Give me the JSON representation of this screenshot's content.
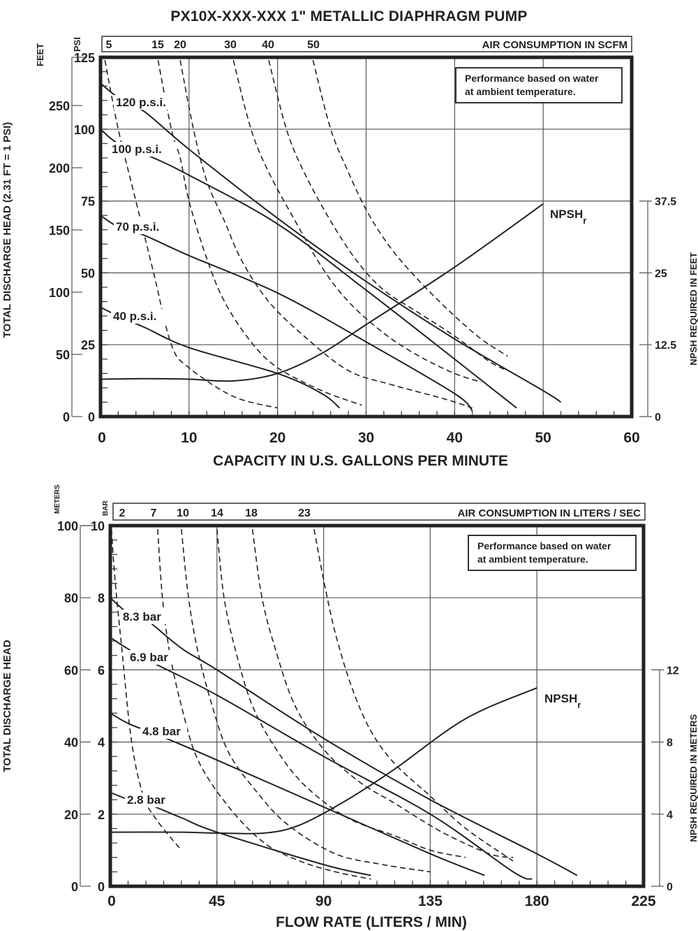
{
  "title": "PX10X-XXX-XXX 1\" METALLIC DIAPHRAGM PUMP",
  "chart_data": [
    {
      "type": "line",
      "title": "PX10X-XXX-XXX 1\" METALLIC DIAPHRAGM PUMP (US units)",
      "xlabel": "CAPACITY IN U.S. GALLONS PER MINUTE",
      "ylabel": "TOTAL DISCHARGE HEAD (2.31 FT = 1 PSI)",
      "ylabel_left_inner": "PSI",
      "ylabel_left_outer": "FEET",
      "ylabel_right": "NPSH REQUIRED IN FEET",
      "top_axis_label": "AIR CONSUMPTION IN SCFM",
      "xlim": [
        0,
        60
      ],
      "ylim": [
        0,
        125
      ],
      "x_ticks": [
        0,
        10,
        20,
        30,
        40,
        50,
        60
      ],
      "y_ticks_psi": [
        0,
        25,
        50,
        75,
        100,
        125
      ],
      "y_ticks_feet": [
        0,
        50,
        100,
        150,
        200,
        250
      ],
      "y_ticks_npsh_feet": [
        0,
        12.5,
        25,
        37.5
      ],
      "air_consumption_ticks": [
        "5",
        "15",
        "20",
        "30",
        "40",
        "50"
      ],
      "note": [
        "Performance based on water",
        "at ambient temperature."
      ],
      "grid": true,
      "series": [
        {
          "name": "120 p.s.i.",
          "style": "solid",
          "points": [
            [
              0,
              116
            ],
            [
              2,
              111
            ],
            [
              5,
              106
            ],
            [
              10,
              93
            ],
            [
              20,
              69
            ],
            [
              30,
              47
            ],
            [
              40,
              27
            ],
            [
              50,
              9
            ],
            [
              52,
              5
            ]
          ]
        },
        {
          "name": "100 p.s.i.",
          "style": "solid",
          "points": [
            [
              0,
              100
            ],
            [
              2,
              95
            ],
            [
              6,
              90
            ],
            [
              10,
              84
            ],
            [
              20,
              67
            ],
            [
              30,
              44
            ],
            [
              40,
              20
            ],
            [
              47,
              3
            ]
          ]
        },
        {
          "name": "70 p.s.i.",
          "style": "solid",
          "points": [
            [
              0,
              70
            ],
            [
              2,
              66
            ],
            [
              5,
              63
            ],
            [
              10,
              56
            ],
            [
              20,
              43
            ],
            [
              30,
              26
            ],
            [
              40,
              8
            ],
            [
              42,
              2
            ]
          ]
        },
        {
          "name": "40 p.s.i.",
          "style": "solid",
          "points": [
            [
              0,
              38
            ],
            [
              2,
              35
            ],
            [
              5,
              31
            ],
            [
              10,
              24
            ],
            [
              20,
              15
            ],
            [
              25,
              8
            ],
            [
              27,
              3
            ]
          ]
        },
        {
          "name": "NPSHr",
          "style": "solid",
          "axis": "npsh_feet",
          "points": [
            [
              0,
              6.5
            ],
            [
              5,
              6.6
            ],
            [
              10,
              6.5
            ],
            [
              15,
              6.2
            ],
            [
              20,
              7.5
            ],
            [
              25,
              11
            ],
            [
              30,
              16
            ],
            [
              40,
              26
            ],
            [
              50,
              37
            ]
          ]
        },
        {
          "name": "air 5 SCFM",
          "style": "dashed",
          "points": [
            [
              0.5,
              124
            ],
            [
              2,
              100
            ],
            [
              4,
              75
            ],
            [
              6,
              50
            ],
            [
              8,
              25
            ],
            [
              10,
              17
            ],
            [
              15,
              7
            ],
            [
              20,
              3
            ]
          ]
        },
        {
          "name": "air 15 SCFM",
          "style": "dashed",
          "points": [
            [
              6.5,
              124
            ],
            [
              8,
              100
            ],
            [
              9,
              90
            ],
            [
              10,
              75
            ],
            [
              12,
              55
            ],
            [
              14,
              40
            ],
            [
              17,
              26
            ],
            [
              20,
              17
            ],
            [
              25,
              9
            ],
            [
              29.5,
              4
            ]
          ]
        },
        {
          "name": "air 20 SCFM",
          "style": "dashed",
          "points": [
            [
              9,
              124
            ],
            [
              10.5,
              100
            ],
            [
              12,
              82
            ],
            [
              14,
              68
            ],
            [
              16,
              54
            ],
            [
              19,
              40
            ],
            [
              23,
              28
            ],
            [
              28,
              16
            ],
            [
              33,
              11
            ],
            [
              39,
              6
            ],
            [
              42,
              3
            ]
          ]
        },
        {
          "name": "air 30 SCFM",
          "style": "dashed",
          "points": [
            [
              15,
              124
            ],
            [
              17,
              100
            ],
            [
              19,
              85
            ],
            [
              22,
              68
            ],
            [
              25,
              52
            ],
            [
              28,
              40
            ],
            [
              32,
              29
            ],
            [
              36,
              21
            ],
            [
              40,
              15
            ],
            [
              43,
              12
            ]
          ]
        },
        {
          "name": "air 40 SCFM",
          "style": "dashed",
          "points": [
            [
              19,
              124
            ],
            [
              21,
              100
            ],
            [
              23,
              85
            ],
            [
              26,
              68
            ],
            [
              29,
              54
            ],
            [
              32,
              44
            ],
            [
              36,
              36
            ],
            [
              40,
              28
            ],
            [
              44,
              19
            ],
            [
              46,
              16
            ]
          ]
        },
        {
          "name": "air 50 SCFM",
          "style": "dashed",
          "points": [
            [
              24,
              124
            ],
            [
              26,
              100
            ],
            [
              28,
              85
            ],
            [
              30,
              72
            ],
            [
              32,
              62
            ],
            [
              34,
              54
            ],
            [
              37,
              44
            ],
            [
              40,
              35
            ],
            [
              43,
              27
            ],
            [
              46,
              21
            ]
          ]
        }
      ]
    },
    {
      "type": "line",
      "title": "PX10X-XXX-XXX 1\" METALLIC DIAPHRAGM PUMP (metric units)",
      "xlabel": "FLOW RATE (LITERS / MIN)",
      "ylabel": "TOTAL DISCHARGE HEAD",
      "ylabel_left_inner": "BAR",
      "ylabel_left_outer": "METERS",
      "ylabel_right": "NPSH REQUIRED IN METERS",
      "top_axis_label": "AIR CONSUMPTION IN LITERS / SEC",
      "xlim": [
        0,
        225
      ],
      "ylim": [
        0,
        10
      ],
      "x_ticks": [
        0,
        45,
        90,
        135,
        180,
        225
      ],
      "y_ticks_bar": [
        0,
        2,
        4,
        6,
        8,
        10
      ],
      "y_ticks_meters": [
        0,
        20,
        40,
        60,
        80,
        100
      ],
      "y_ticks_npsh_meters": [
        0,
        4,
        8,
        12
      ],
      "air_consumption_ticks": [
        "2",
        "7",
        "10",
        "14",
        "18",
        "23"
      ],
      "note": [
        "Performance based on water",
        "at ambient temperature."
      ],
      "grid": true,
      "series": [
        {
          "name": "8.3 bar",
          "style": "solid",
          "points": [
            [
              0,
              8.0
            ],
            [
              7,
              7.6
            ],
            [
              15,
              7.4
            ],
            [
              30,
              6.6
            ],
            [
              45,
              6.0
            ],
            [
              90,
              4.1
            ],
            [
              135,
              2.4
            ],
            [
              180,
              0.9
            ],
            [
              197,
              0.3
            ]
          ]
        },
        {
          "name": "6.9 bar",
          "style": "solid",
          "points": [
            [
              0,
              6.9
            ],
            [
              7,
              6.6
            ],
            [
              18,
              6.2
            ],
            [
              45,
              5.3
            ],
            [
              90,
              3.6
            ],
            [
              135,
              2.0
            ],
            [
              170,
              0.4
            ],
            [
              178,
              0.2
            ]
          ]
        },
        {
          "name": "4.8 bar",
          "style": "solid",
          "points": [
            [
              0,
              4.8
            ],
            [
              8,
              4.5
            ],
            [
              20,
              4.2
            ],
            [
              45,
              3.5
            ],
            [
              90,
              2.2
            ],
            [
              135,
              0.9
            ],
            [
              158,
              0.3
            ]
          ]
        },
        {
          "name": "2.8 bar",
          "style": "solid",
          "points": [
            [
              0,
              2.6
            ],
            [
              8,
              2.4
            ],
            [
              15,
              2.3
            ],
            [
              30,
              1.9
            ],
            [
              45,
              1.5
            ],
            [
              90,
              0.6
            ],
            [
              110,
              0.3
            ]
          ]
        },
        {
          "name": "NPSHr",
          "style": "solid",
          "axis": "npsh_meters",
          "points": [
            [
              0,
              3.0
            ],
            [
              30,
              3.0
            ],
            [
              45,
              2.95
            ],
            [
              65,
              2.95
            ],
            [
              80,
              3.4
            ],
            [
              100,
              4.8
            ],
            [
              120,
              6.5
            ],
            [
              150,
              9.3
            ],
            [
              180,
              11.0
            ]
          ]
        },
        {
          "name": "air 2 L/s",
          "style": "dashed",
          "points": [
            [
              0.5,
              9.9
            ],
            [
              2,
              8.5
            ],
            [
              5,
              6.5
            ],
            [
              9,
              4.0
            ],
            [
              14,
              2.5
            ],
            [
              20,
              1.8
            ],
            [
              30,
              1.0
            ]
          ]
        },
        {
          "name": "air 7 L/s",
          "style": "dashed",
          "points": [
            [
              20,
              9.9
            ],
            [
              22,
              8.0
            ],
            [
              25,
              6.5
            ],
            [
              30,
              5.0
            ],
            [
              37,
              3.5
            ],
            [
              50,
              2.2
            ],
            [
              65,
              1.2
            ],
            [
              80,
              0.7
            ],
            [
              95,
              0.4
            ],
            [
              110,
              0.2
            ]
          ]
        },
        {
          "name": "air 10 L/s",
          "style": "dashed",
          "points": [
            [
              30,
              9.9
            ],
            [
              33,
              8.0
            ],
            [
              37,
              6.5
            ],
            [
              43,
              5.0
            ],
            [
              50,
              3.7
            ],
            [
              62,
              2.6
            ],
            [
              75,
              1.7
            ],
            [
              95,
              0.9
            ],
            [
              115,
              0.6
            ],
            [
              135,
              0.4
            ]
          ]
        },
        {
          "name": "air 14 L/s",
          "style": "dashed",
          "points": [
            [
              45,
              9.9
            ],
            [
              48,
              8.0
            ],
            [
              53,
              6.5
            ],
            [
              60,
              5.0
            ],
            [
              70,
              3.8
            ],
            [
              82,
              2.8
            ],
            [
              100,
              1.9
            ],
            [
              120,
              1.4
            ],
            [
              135,
              1.0
            ],
            [
              150,
              0.8
            ]
          ]
        },
        {
          "name": "air 18 L/s",
          "style": "dashed",
          "points": [
            [
              60,
              9.9
            ],
            [
              64,
              8.0
            ],
            [
              70,
              6.5
            ],
            [
              78,
              5.0
            ],
            [
              90,
              3.8
            ],
            [
              105,
              2.9
            ],
            [
              120,
              2.3
            ],
            [
              140,
              1.5
            ],
            [
              160,
              0.9
            ],
            [
              170,
              0.8
            ]
          ]
        },
        {
          "name": "air 23 L/s",
          "style": "dashed",
          "points": [
            [
              86,
              9.9
            ],
            [
              90,
              8.5
            ],
            [
              95,
              7.0
            ],
            [
              102,
              5.5
            ],
            [
              110,
              4.3
            ],
            [
              120,
              3.4
            ],
            [
              135,
              2.5
            ],
            [
              150,
              1.6
            ],
            [
              170,
              0.7
            ]
          ]
        }
      ]
    }
  ]
}
